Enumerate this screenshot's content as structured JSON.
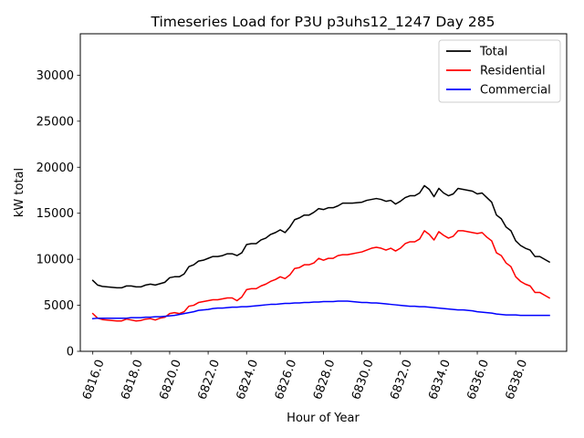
{
  "chart_data": {
    "type": "line",
    "title": "Timeseries Load for P3U p3uhs12_1247  Day 285",
    "xlabel": "Hour of Year",
    "ylabel": "kW total",
    "xlim": [
      6815.35,
      6840.65
    ],
    "ylim": [
      0,
      34500
    ],
    "xticks": [
      6816,
      6818,
      6820,
      6822,
      6824,
      6826,
      6828,
      6830,
      6832,
      6834,
      6836,
      6838
    ],
    "xtick_labels": [
      "6816.0",
      "6818.0",
      "6820.0",
      "6822.0",
      "6824.0",
      "6826.0",
      "6828.0",
      "6830.0",
      "6832.0",
      "6834.0",
      "6836.0",
      "6838.0"
    ],
    "yticks": [
      0,
      5000,
      10000,
      15000,
      20000,
      25000,
      30000
    ],
    "ytick_labels": [
      "0",
      "5000",
      "10000",
      "15000",
      "20000",
      "25000",
      "30000"
    ],
    "legend_position": "top-right",
    "x": [
      6816.0,
      6816.25,
      6816.5,
      6816.75,
      6817.0,
      6817.25,
      6817.5,
      6817.75,
      6818.0,
      6818.25,
      6818.5,
      6818.75,
      6819.0,
      6819.25,
      6819.5,
      6819.75,
      6820.0,
      6820.25,
      6820.5,
      6820.75,
      6821.0,
      6821.25,
      6821.5,
      6821.75,
      6822.0,
      6822.25,
      6822.5,
      6822.75,
      6823.0,
      6823.25,
      6823.5,
      6823.75,
      6824.0,
      6824.25,
      6824.5,
      6824.75,
      6825.0,
      6825.25,
      6825.5,
      6825.75,
      6826.0,
      6826.25,
      6826.5,
      6826.75,
      6827.0,
      6827.25,
      6827.5,
      6827.75,
      6828.0,
      6828.25,
      6828.5,
      6828.75,
      6829.0,
      6829.25,
      6829.5,
      6829.75,
      6830.0,
      6830.25,
      6830.5,
      6830.75,
      6831.0,
      6831.25,
      6831.5,
      6831.75,
      6832.0,
      6832.25,
      6832.5,
      6832.75,
      6833.0,
      6833.25,
      6833.5,
      6833.75,
      6834.0,
      6834.25,
      6834.5,
      6834.75,
      6835.0,
      6835.25,
      6835.5,
      6835.75,
      6836.0,
      6836.25,
      6836.5,
      6836.75,
      6837.0,
      6837.25,
      6837.5,
      6837.75,
      6838.0,
      6838.25,
      6838.5,
      6838.75,
      6839.0,
      6839.25,
      6839.5,
      6839.75
    ],
    "series": [
      {
        "name": "Total",
        "color": "#000000",
        "values": [
          7700,
          7200,
          7050,
          7000,
          6950,
          6900,
          6900,
          7100,
          7100,
          7000,
          7000,
          7200,
          7300,
          7200,
          7350,
          7500,
          8000,
          8100,
          8100,
          8400,
          9200,
          9400,
          9800,
          9900,
          10100,
          10300,
          10300,
          10400,
          10600,
          10600,
          10400,
          10700,
          11600,
          11700,
          11700,
          12100,
          12300,
          12700,
          12900,
          13200,
          12900,
          13500,
          14300,
          14500,
          14800,
          14800,
          15100,
          15500,
          15400,
          15600,
          15600,
          15800,
          16100,
          16100,
          16100,
          16150,
          16200,
          16400,
          16500,
          16600,
          16500,
          16300,
          16400,
          16000,
          16300,
          16700,
          16900,
          16900,
          17200,
          18000,
          17600,
          16800,
          17700,
          17200,
          16900,
          17100,
          17700,
          17600,
          17500,
          17400,
          17100,
          17200,
          16700,
          16200,
          14800,
          14400,
          13500,
          13100,
          12000,
          11500,
          11200,
          11000,
          10300,
          10300,
          10000,
          9700
        ]
      },
      {
        "name": "Residential",
        "color": "#ff0000",
        "values": [
          4100,
          3600,
          3450,
          3400,
          3350,
          3300,
          3300,
          3500,
          3400,
          3300,
          3350,
          3500,
          3550,
          3400,
          3600,
          3700,
          4100,
          4200,
          4100,
          4300,
          4900,
          5000,
          5300,
          5400,
          5500,
          5600,
          5600,
          5700,
          5800,
          5800,
          5500,
          5900,
          6700,
          6800,
          6800,
          7100,
          7300,
          7600,
          7800,
          8100,
          7900,
          8300,
          9000,
          9100,
          9400,
          9400,
          9600,
          10100,
          9900,
          10100,
          10100,
          10400,
          10500,
          10500,
          10600,
          10700,
          10800,
          11000,
          11200,
          11300,
          11200,
          11000,
          11200,
          10900,
          11200,
          11700,
          11900,
          11900,
          12200,
          13100,
          12700,
          12100,
          13000,
          12600,
          12300,
          12500,
          13100,
          13100,
          13000,
          12900,
          12800,
          12900,
          12400,
          12000,
          10700,
          10400,
          9600,
          9200,
          8100,
          7600,
          7300,
          7100,
          6400,
          6400,
          6100,
          5800
        ]
      },
      {
        "name": "Commercial",
        "color": "#0000ff",
        "values": [
          3550,
          3600,
          3600,
          3600,
          3600,
          3600,
          3600,
          3600,
          3650,
          3650,
          3650,
          3700,
          3700,
          3750,
          3750,
          3800,
          3850,
          3900,
          4000,
          4100,
          4200,
          4300,
          4450,
          4500,
          4550,
          4650,
          4700,
          4700,
          4750,
          4800,
          4800,
          4850,
          4850,
          4900,
          4950,
          5000,
          5050,
          5100,
          5100,
          5150,
          5200,
          5200,
          5250,
          5250,
          5300,
          5300,
          5350,
          5350,
          5400,
          5400,
          5400,
          5450,
          5450,
          5450,
          5400,
          5350,
          5300,
          5300,
          5250,
          5250,
          5200,
          5150,
          5100,
          5050,
          5000,
          4950,
          4900,
          4900,
          4850,
          4850,
          4800,
          4750,
          4700,
          4650,
          4600,
          4550,
          4500,
          4500,
          4450,
          4400,
          4300,
          4250,
          4200,
          4150,
          4050,
          4000,
          3950,
          3950,
          3950,
          3900,
          3900,
          3900,
          3900,
          3900,
          3900,
          3900
        ]
      }
    ]
  }
}
